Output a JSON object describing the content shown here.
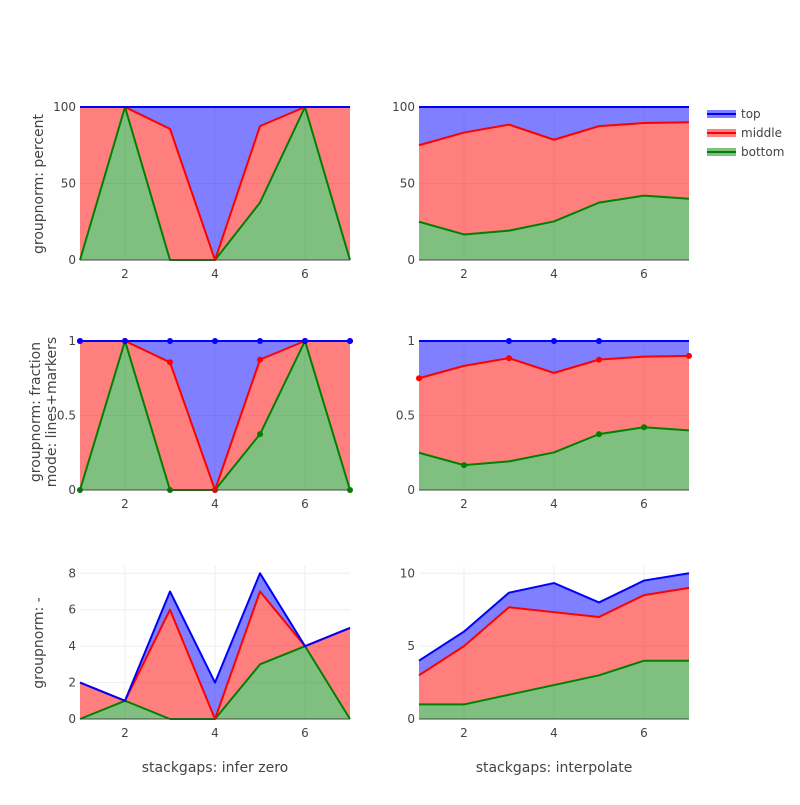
{
  "colors": {
    "top": "#0000ff",
    "middle": "#ff0000",
    "bottom": "#008000",
    "grid": "#eeeeee",
    "axis": "#444444"
  },
  "legend": [
    {
      "name": "top",
      "color": "#0000ff"
    },
    {
      "name": "middle",
      "color": "#ff0000"
    },
    {
      "name": "bottom",
      "color": "#008000"
    }
  ],
  "col_titles": [
    "stackgaps: infer zero",
    "stackgaps: interpolate"
  ],
  "row_titles": [
    [
      "groupnorm: percent"
    ],
    [
      "groupnorm: fraction",
      "mode: lines+markers"
    ],
    [
      "groupnorm: -"
    ]
  ],
  "chart_data": [
    {
      "type": "area",
      "id": "r0c0",
      "groupnorm": "percent",
      "stackgaps": "infer zero",
      "xlim": [
        1,
        7
      ],
      "ylim": [
        0,
        100
      ],
      "xticks": [
        2,
        4,
        6
      ],
      "yticks": [
        0,
        50,
        100
      ],
      "markers": false,
      "series": [
        {
          "name": "bottom",
          "x": [
            1,
            2,
            3,
            4,
            5,
            6,
            7
          ],
          "y": [
            0,
            100,
            0,
            0,
            37.5,
            100,
            0
          ]
        },
        {
          "name": "middle",
          "x": [
            1,
            2,
            3,
            4,
            5,
            6,
            7
          ],
          "y": [
            100,
            100,
            85.7,
            0,
            87.5,
            100,
            100
          ]
        },
        {
          "name": "top",
          "x": [
            1,
            2,
            3,
            4,
            5,
            6,
            7
          ],
          "y": [
            100,
            100,
            100,
            100,
            100,
            100,
            100
          ]
        }
      ]
    },
    {
      "type": "area",
      "id": "r0c1",
      "groupnorm": "percent",
      "stackgaps": "interpolate",
      "xlim": [
        1,
        7
      ],
      "ylim": [
        0,
        100
      ],
      "xticks": [
        2,
        4,
        6
      ],
      "yticks": [
        0,
        50,
        100
      ],
      "markers": false,
      "series": [
        {
          "name": "bottom",
          "x": [
            1,
            2,
            3,
            4,
            5,
            6,
            7
          ],
          "y": [
            25,
            16.7,
            19.2,
            25.2,
            37.5,
            42.1,
            40
          ]
        },
        {
          "name": "middle",
          "x": [
            1,
            2,
            3,
            4,
            5,
            6,
            7
          ],
          "y": [
            75,
            83.3,
            88.5,
            78.6,
            87.5,
            89.5,
            90
          ]
        },
        {
          "name": "top",
          "x": [
            1,
            2,
            3,
            4,
            5,
            6,
            7
          ],
          "y": [
            100,
            100,
            100,
            100,
            100,
            100,
            100
          ]
        }
      ]
    },
    {
      "type": "area",
      "id": "r1c0",
      "groupnorm": "fraction",
      "stackgaps": "infer zero",
      "xlim": [
        1,
        7
      ],
      "ylim": [
        0,
        1
      ],
      "xticks": [
        2,
        4,
        6
      ],
      "yticks": [
        0,
        0.5,
        1
      ],
      "markers": true,
      "series": [
        {
          "name": "bottom",
          "x": [
            1,
            2,
            3,
            4,
            5,
            6,
            7
          ],
          "y": [
            0,
            1,
            0,
            0,
            0.375,
            1,
            0
          ],
          "marker_x": [
            1,
            2,
            3,
            4,
            5,
            6,
            7
          ]
        },
        {
          "name": "middle",
          "x": [
            1,
            2,
            3,
            4,
            5,
            6,
            7
          ],
          "y": [
            1,
            1,
            0.857,
            0,
            0.875,
            1,
            1
          ],
          "marker_x": [
            1,
            2,
            3,
            4,
            5,
            6,
            7
          ]
        },
        {
          "name": "top",
          "x": [
            1,
            2,
            3,
            4,
            5,
            6,
            7
          ],
          "y": [
            1,
            1,
            1,
            1,
            1,
            1,
            1
          ],
          "marker_x": [
            1,
            2,
            3,
            4,
            5,
            6,
            7
          ]
        }
      ]
    },
    {
      "type": "area",
      "id": "r1c1",
      "groupnorm": "fraction",
      "stackgaps": "interpolate",
      "xlim": [
        1,
        7
      ],
      "ylim": [
        0,
        1
      ],
      "xticks": [
        2,
        4,
        6
      ],
      "yticks": [
        0,
        0.5,
        1
      ],
      "markers": true,
      "series": [
        {
          "name": "bottom",
          "x": [
            1,
            2,
            3,
            4,
            5,
            6,
            7
          ],
          "y": [
            0.25,
            0.167,
            0.192,
            0.252,
            0.375,
            0.421,
            0.4
          ],
          "marker_x": [
            2,
            5,
            6
          ]
        },
        {
          "name": "middle",
          "x": [
            1,
            2,
            3,
            4,
            5,
            6,
            7
          ],
          "y": [
            0.75,
            0.833,
            0.885,
            0.786,
            0.875,
            0.895,
            0.9
          ],
          "marker_x": [
            1,
            3,
            5,
            7
          ]
        },
        {
          "name": "top",
          "x": [
            1,
            2,
            3,
            4,
            5,
            6,
            7
          ],
          "y": [
            1,
            1,
            1,
            1,
            1,
            1,
            1
          ],
          "marker_x": [
            3,
            4,
            5
          ]
        }
      ]
    },
    {
      "type": "area",
      "id": "r2c0",
      "groupnorm": "-",
      "stackgaps": "infer zero",
      "xlim": [
        1,
        7
      ],
      "ylim": [
        0,
        8.4
      ],
      "xticks": [
        2,
        4,
        6
      ],
      "yticks": [
        0,
        2,
        4,
        6,
        8
      ],
      "markers": false,
      "series": [
        {
          "name": "bottom",
          "x": [
            1,
            2,
            3,
            4,
            5,
            6,
            7
          ],
          "y": [
            0,
            1,
            0,
            0,
            3,
            4,
            0
          ]
        },
        {
          "name": "middle",
          "x": [
            1,
            2,
            3,
            4,
            5,
            6,
            7
          ],
          "y": [
            2,
            1,
            6,
            0,
            7,
            4,
            5
          ]
        },
        {
          "name": "top",
          "x": [
            1,
            2,
            3,
            4,
            5,
            6,
            7
          ],
          "y": [
            2,
            1,
            7,
            2,
            8,
            4,
            5
          ]
        }
      ]
    },
    {
      "type": "area",
      "id": "r2c1",
      "groupnorm": "-",
      "stackgaps": "interpolate",
      "xlim": [
        1,
        7
      ],
      "ylim": [
        0,
        10.5
      ],
      "xticks": [
        2,
        4,
        6
      ],
      "yticks": [
        0,
        5,
        10
      ],
      "markers": false,
      "series": [
        {
          "name": "bottom",
          "x": [
            1,
            2,
            3,
            4,
            5,
            6,
            7
          ],
          "y": [
            1,
            1,
            1.67,
            2.33,
            3,
            4,
            4
          ]
        },
        {
          "name": "middle",
          "x": [
            1,
            2,
            3,
            4,
            5,
            6,
            7
          ],
          "y": [
            3,
            5,
            7.67,
            7.33,
            7,
            8.5,
            9
          ]
        },
        {
          "name": "top",
          "x": [
            1,
            2,
            3,
            4,
            5,
            6,
            7
          ],
          "y": [
            4,
            6,
            8.67,
            9.33,
            8,
            9.5,
            10
          ]
        }
      ]
    }
  ]
}
